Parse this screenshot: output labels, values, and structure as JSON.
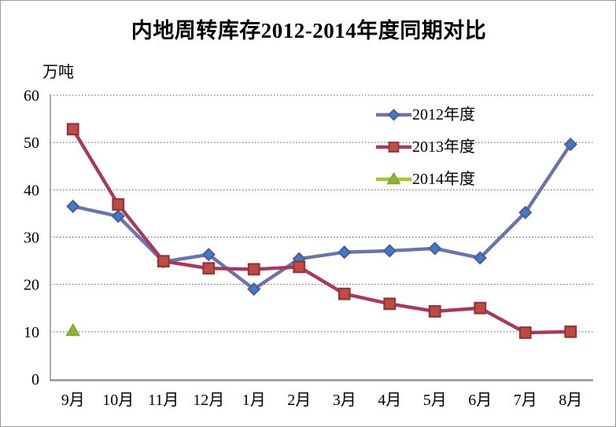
{
  "header": {
    "title": "内地周转库存2012-2014年度同期对比"
  },
  "chart_data": {
    "type": "line",
    "title": "内地周转库存2012-2014年度同期对比",
    "unit_label": "万吨",
    "categories": [
      "9月",
      "10月",
      "11月",
      "12月",
      "1月",
      "2月",
      "3月",
      "4月",
      "5月",
      "6月",
      "7月",
      "8月"
    ],
    "series": [
      {
        "name": "2012年度",
        "marker": "diamond",
        "line_color": "#6B73AC",
        "marker_fill": "#417CC0",
        "marker_stroke": "#4F589E",
        "values": [
          36.5,
          34.4,
          24.8,
          26.3,
          19.0,
          25.4,
          26.8,
          27.1,
          27.6,
          25.6,
          35.2,
          49.6
        ]
      },
      {
        "name": "2013年度",
        "marker": "square",
        "line_color": "#A8395E",
        "marker_fill": "#BF4B49",
        "marker_stroke": "#8E3734",
        "values": [
          52.8,
          36.9,
          24.9,
          23.4,
          23.2,
          23.7,
          18.0,
          15.9,
          14.3,
          15.0,
          9.8,
          10.0
        ]
      },
      {
        "name": "2014年度",
        "marker": "triangle",
        "line_color": "#A6C33E",
        "marker_fill": "#8DB33A",
        "marker_stroke": "#7FA22F",
        "values": [
          10.3,
          null,
          null,
          null,
          null,
          null,
          null,
          null,
          null,
          null,
          null,
          null
        ]
      }
    ],
    "ylim": [
      0,
      60
    ],
    "yticks": [
      0,
      10,
      20,
      30,
      40,
      50,
      60
    ],
    "grid": "horizontal dotted",
    "legend_position": "inside upper right",
    "colors": {
      "background": "#FFFFFF",
      "axis": "#A3A3A3",
      "gridline": "#595959",
      "text": "#000000"
    }
  }
}
